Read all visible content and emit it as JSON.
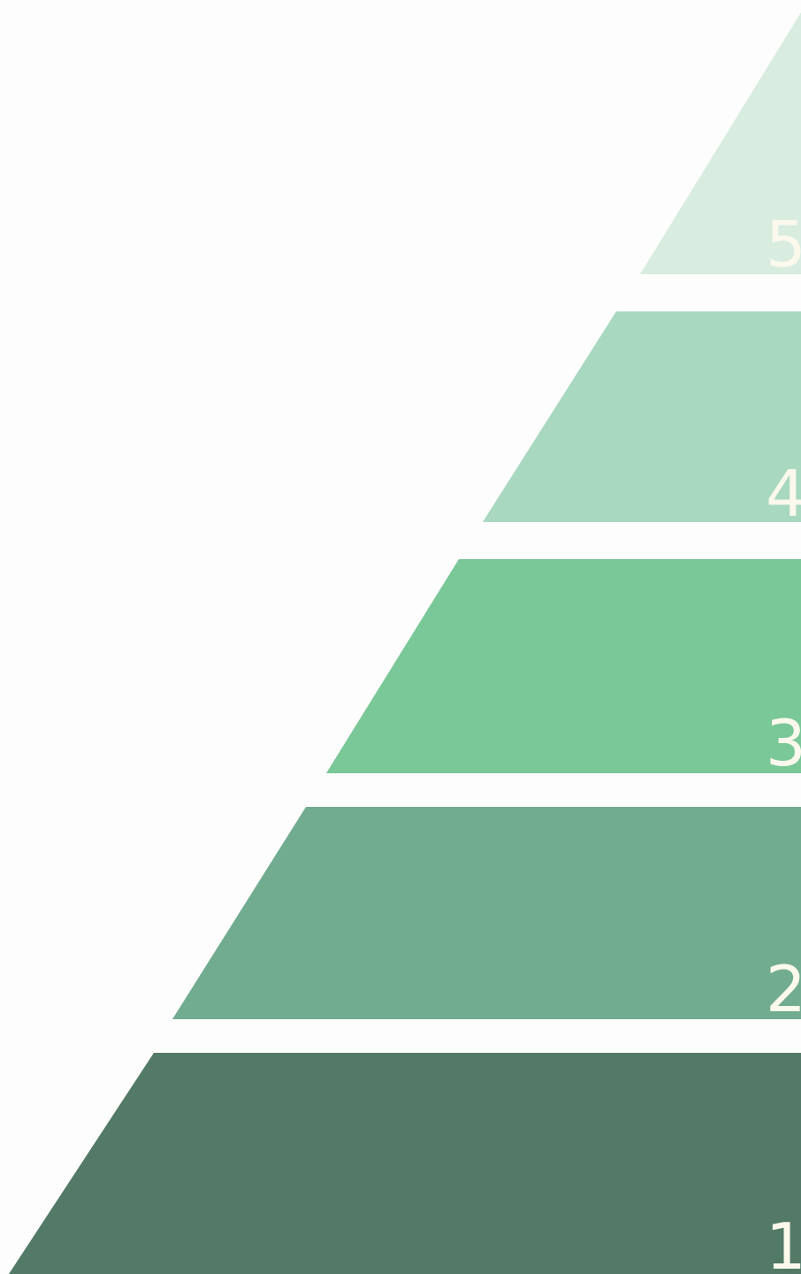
{
  "diagram": {
    "type": "stepped-pyramid",
    "tiers": [
      {
        "label": "5",
        "color": "#d8ece0"
      },
      {
        "label": "4",
        "color": "#a8d8c0"
      },
      {
        "label": "3",
        "color": "#7ac797"
      },
      {
        "label": "2",
        "color": "#72ac90"
      },
      {
        "label": "1",
        "color": "#527a67"
      }
    ],
    "label_color": "#fbf8ec",
    "background": "#fdfdfd"
  }
}
